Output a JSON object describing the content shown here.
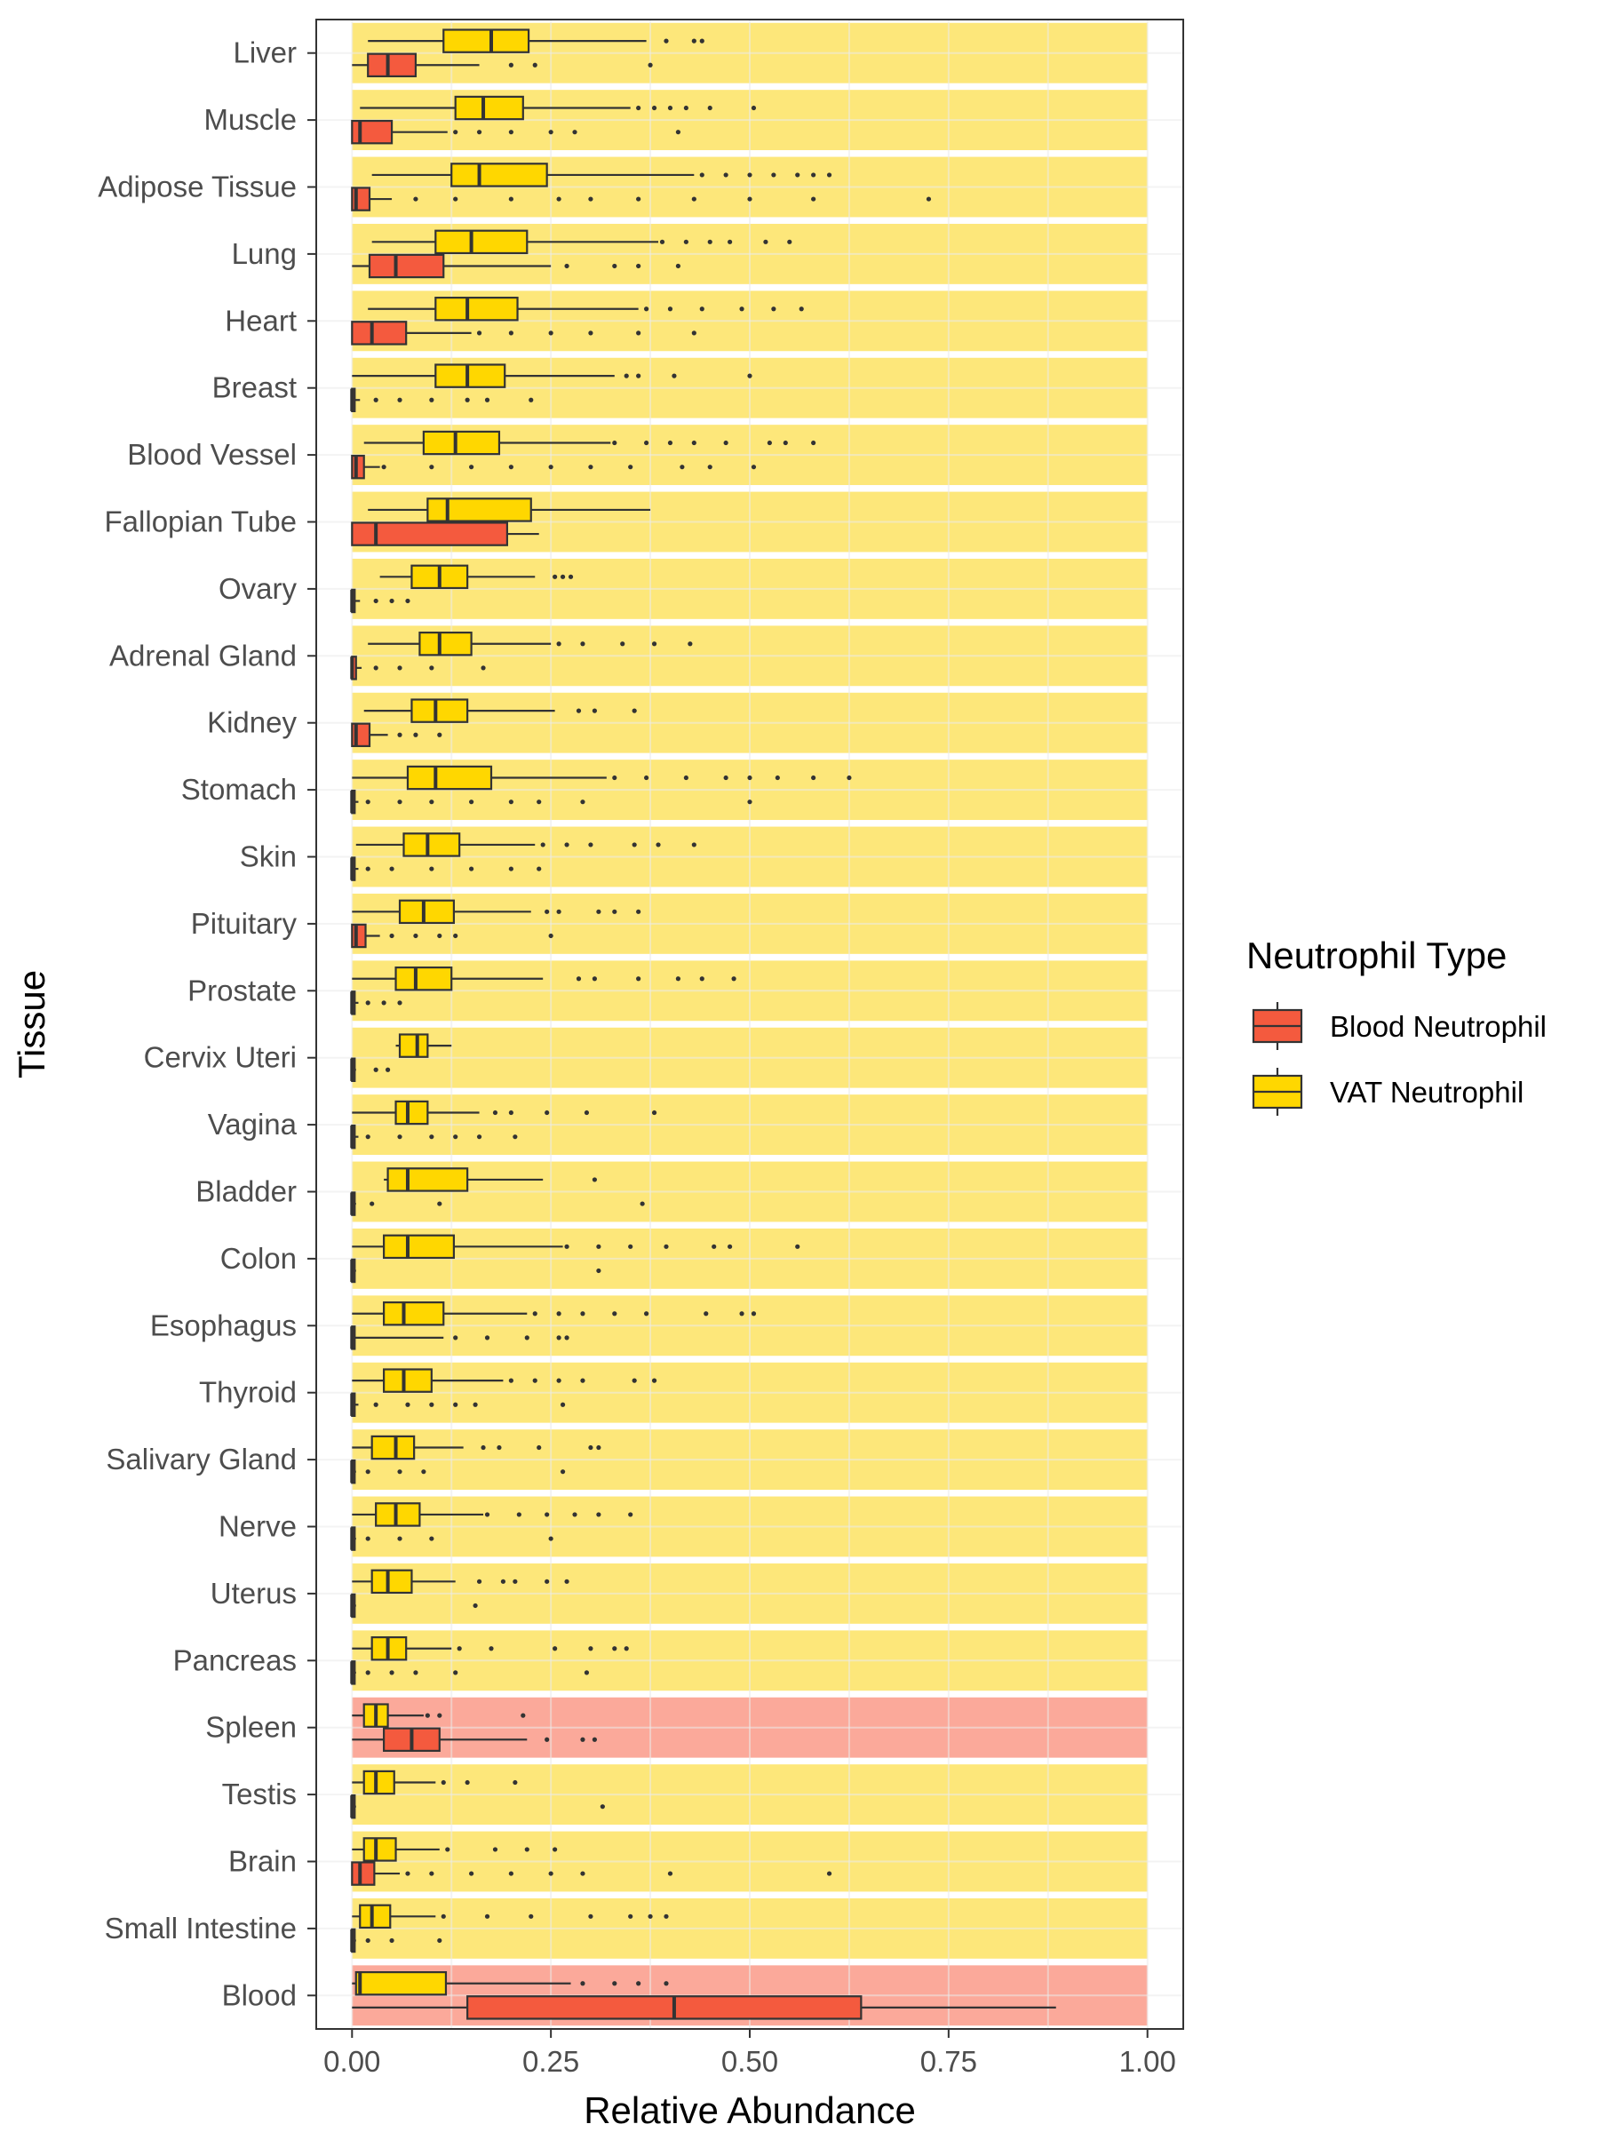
{
  "chart_data": {
    "type": "boxplot",
    "orientation": "horizontal",
    "xlabel": "Relative Abundance",
    "ylabel": "Tissue",
    "xlim": [
      -0.045,
      1.045
    ],
    "x_ticks": [
      0,
      0.25,
      0.5,
      0.75,
      1.0
    ],
    "x_tick_labels": [
      "0.00",
      "0.25",
      "0.50",
      "0.75",
      "1.00"
    ],
    "grid": true,
    "legend": {
      "title": "Neutrophil Type",
      "placement": "right",
      "entries": [
        {
          "name": "Blood Neutrophil",
          "color": "#F45A3E"
        },
        {
          "name": "VAT Neutrophil",
          "color": "#FFD700"
        }
      ]
    },
    "colors": {
      "blood_box": "#F45A3E",
      "vat_box": "#FFD700",
      "bg_vat_dominant": "#FDE77A",
      "bg_blood_dominant": "#FBA99A",
      "grid": "#EBEBEB",
      "box_outline": "#333333",
      "axis_text": "#4d4d4d"
    },
    "categories": [
      "Liver",
      "Muscle",
      "Adipose Tissue",
      "Lung",
      "Heart",
      "Breast",
      "Blood Vessel",
      "Fallopian Tube",
      "Ovary",
      "Adrenal Gland",
      "Kidney",
      "Stomach",
      "Skin",
      "Pituitary",
      "Prostate",
      "Cervix Uteri",
      "Vagina",
      "Bladder",
      "Colon",
      "Esophagus",
      "Thyroid",
      "Salivary Gland",
      "Nerve",
      "Uterus",
      "Pancreas",
      "Spleen",
      "Testis",
      "Brain",
      "Small Intestine",
      "Blood"
    ],
    "dominant_type": [
      "VAT Neutrophil",
      "VAT Neutrophil",
      "VAT Neutrophil",
      "VAT Neutrophil",
      "VAT Neutrophil",
      "VAT Neutrophil",
      "VAT Neutrophil",
      "VAT Neutrophil",
      "VAT Neutrophil",
      "VAT Neutrophil",
      "VAT Neutrophil",
      "VAT Neutrophil",
      "VAT Neutrophil",
      "VAT Neutrophil",
      "VAT Neutrophil",
      "VAT Neutrophil",
      "VAT Neutrophil",
      "VAT Neutrophil",
      "VAT Neutrophil",
      "VAT Neutrophil",
      "VAT Neutrophil",
      "VAT Neutrophil",
      "VAT Neutrophil",
      "VAT Neutrophil",
      "VAT Neutrophil",
      "Blood Neutrophil",
      "VAT Neutrophil",
      "VAT Neutrophil",
      "VAT Neutrophil",
      "Blood Neutrophil"
    ],
    "series": [
      {
        "name": "VAT Neutrophil",
        "boxes": [
          {
            "min": 0.02,
            "q1": 0.115,
            "median": 0.175,
            "q3": 0.222,
            "max": 0.37,
            "outliers": [
              0.395,
              0.43,
              0.44
            ]
          },
          {
            "min": 0.01,
            "q1": 0.13,
            "median": 0.165,
            "q3": 0.215,
            "max": 0.35,
            "outliers": [
              0.36,
              0.38,
              0.4,
              0.42,
              0.45,
              0.505
            ]
          },
          {
            "min": 0.025,
            "q1": 0.125,
            "median": 0.16,
            "q3": 0.245,
            "max": 0.43,
            "outliers": [
              0.44,
              0.47,
              0.5,
              0.53,
              0.56,
              0.58,
              0.6
            ]
          },
          {
            "min": 0.025,
            "q1": 0.105,
            "median": 0.15,
            "q3": 0.22,
            "max": 0.385,
            "outliers": [
              0.39,
              0.42,
              0.45,
              0.475,
              0.52,
              0.55
            ]
          },
          {
            "min": 0.02,
            "q1": 0.105,
            "median": 0.145,
            "q3": 0.208,
            "max": 0.36,
            "outliers": [
              0.37,
              0.4,
              0.44,
              0.49,
              0.53,
              0.565
            ]
          },
          {
            "min": 0.0,
            "q1": 0.105,
            "median": 0.145,
            "q3": 0.192,
            "max": 0.33,
            "outliers": [
              0.345,
              0.36,
              0.405,
              0.5
            ]
          },
          {
            "min": 0.015,
            "q1": 0.09,
            "median": 0.13,
            "q3": 0.185,
            "max": 0.325,
            "outliers": [
              0.33,
              0.37,
              0.4,
              0.43,
              0.47,
              0.525,
              0.545,
              0.58
            ]
          },
          {
            "min": 0.02,
            "q1": 0.095,
            "median": 0.12,
            "q3": 0.225,
            "max": 0.375,
            "outliers": []
          },
          {
            "min": 0.035,
            "q1": 0.075,
            "median": 0.11,
            "q3": 0.145,
            "max": 0.23,
            "outliers": [
              0.255,
              0.265,
              0.275
            ]
          },
          {
            "min": 0.02,
            "q1": 0.085,
            "median": 0.11,
            "q3": 0.15,
            "max": 0.25,
            "outliers": [
              0.26,
              0.29,
              0.34,
              0.38,
              0.425
            ]
          },
          {
            "min": 0.015,
            "q1": 0.075,
            "median": 0.105,
            "q3": 0.145,
            "max": 0.255,
            "outliers": [
              0.285,
              0.305,
              0.355
            ]
          },
          {
            "min": 0.0,
            "q1": 0.07,
            "median": 0.105,
            "q3": 0.175,
            "max": 0.32,
            "outliers": [
              0.33,
              0.37,
              0.42,
              0.47,
              0.5,
              0.535,
              0.58,
              0.625
            ]
          },
          {
            "min": 0.005,
            "q1": 0.065,
            "median": 0.095,
            "q3": 0.135,
            "max": 0.23,
            "outliers": [
              0.24,
              0.27,
              0.3,
              0.355,
              0.385,
              0.43
            ]
          },
          {
            "min": 0.0,
            "q1": 0.06,
            "median": 0.09,
            "q3": 0.128,
            "max": 0.225,
            "outliers": [
              0.245,
              0.26,
              0.31,
              0.33,
              0.36
            ]
          },
          {
            "min": 0.0,
            "q1": 0.055,
            "median": 0.08,
            "q3": 0.125,
            "max": 0.24,
            "outliers": [
              0.285,
              0.305,
              0.36,
              0.41,
              0.44,
              0.48
            ]
          },
          {
            "min": 0.055,
            "q1": 0.06,
            "median": 0.082,
            "q3": 0.095,
            "max": 0.125,
            "outliers": []
          },
          {
            "min": 0.0,
            "q1": 0.055,
            "median": 0.07,
            "q3": 0.095,
            "max": 0.16,
            "outliers": [
              0.18,
              0.2,
              0.245,
              0.295,
              0.38
            ]
          },
          {
            "min": 0.04,
            "q1": 0.045,
            "median": 0.07,
            "q3": 0.145,
            "max": 0.24,
            "outliers": [
              0.305
            ]
          },
          {
            "min": 0.0,
            "q1": 0.04,
            "median": 0.07,
            "q3": 0.128,
            "max": 0.265,
            "outliers": [
              0.27,
              0.31,
              0.35,
              0.395,
              0.455,
              0.475,
              0.56
            ]
          },
          {
            "min": 0.0,
            "q1": 0.04,
            "median": 0.065,
            "q3": 0.115,
            "max": 0.22,
            "outliers": [
              0.23,
              0.26,
              0.29,
              0.33,
              0.37,
              0.445,
              0.49,
              0.505
            ]
          },
          {
            "min": 0.0,
            "q1": 0.04,
            "median": 0.065,
            "q3": 0.1,
            "max": 0.19,
            "outliers": [
              0.2,
              0.23,
              0.26,
              0.29,
              0.355,
              0.38
            ]
          },
          {
            "min": 0.0,
            "q1": 0.025,
            "median": 0.055,
            "q3": 0.078,
            "max": 0.14,
            "outliers": [
              0.165,
              0.185,
              0.235,
              0.3,
              0.31
            ]
          },
          {
            "min": 0.0,
            "q1": 0.03,
            "median": 0.055,
            "q3": 0.085,
            "max": 0.165,
            "outliers": [
              0.17,
              0.21,
              0.245,
              0.28,
              0.31,
              0.35
            ]
          },
          {
            "min": 0.0,
            "q1": 0.025,
            "median": 0.045,
            "q3": 0.075,
            "max": 0.13,
            "outliers": [
              0.16,
              0.19,
              0.205,
              0.245,
              0.27
            ]
          },
          {
            "min": 0.0,
            "q1": 0.025,
            "median": 0.045,
            "q3": 0.068,
            "max": 0.125,
            "outliers": [
              0.135,
              0.175,
              0.255,
              0.3,
              0.33,
              0.345
            ]
          },
          {
            "min": 0.0,
            "q1": 0.015,
            "median": 0.03,
            "q3": 0.045,
            "max": 0.09,
            "outliers": [
              0.095,
              0.11,
              0.215
            ]
          },
          {
            "min": 0.0,
            "q1": 0.015,
            "median": 0.03,
            "q3": 0.053,
            "max": 0.105,
            "outliers": [
              0.115,
              0.145,
              0.205
            ]
          },
          {
            "min": 0.0,
            "q1": 0.015,
            "median": 0.03,
            "q3": 0.055,
            "max": 0.11,
            "outliers": [
              0.12,
              0.18,
              0.22,
              0.255
            ]
          },
          {
            "min": 0.0,
            "q1": 0.01,
            "median": 0.025,
            "q3": 0.048,
            "max": 0.105,
            "outliers": [
              0.115,
              0.17,
              0.225,
              0.3,
              0.35,
              0.375,
              0.395
            ]
          },
          {
            "min": 0.0,
            "q1": 0.005,
            "median": 0.01,
            "q3": 0.118,
            "max": 0.275,
            "outliers": [
              0.29,
              0.33,
              0.36,
              0.395
            ]
          }
        ]
      },
      {
        "name": "Blood Neutrophil",
        "boxes": [
          {
            "min": 0.0,
            "q1": 0.02,
            "median": 0.045,
            "q3": 0.08,
            "max": 0.16,
            "outliers": [
              0.2,
              0.23,
              0.375
            ]
          },
          {
            "min": 0.0,
            "q1": 0.0,
            "median": 0.01,
            "q3": 0.05,
            "max": 0.12,
            "outliers": [
              0.13,
              0.16,
              0.2,
              0.25,
              0.28,
              0.41
            ]
          },
          {
            "min": 0.0,
            "q1": 0.0,
            "median": 0.005,
            "q3": 0.022,
            "max": 0.05,
            "outliers": [
              0.08,
              0.13,
              0.2,
              0.26,
              0.3,
              0.36,
              0.43,
              0.5,
              0.58,
              0.725
            ]
          },
          {
            "min": 0.0,
            "q1": 0.022,
            "median": 0.055,
            "q3": 0.115,
            "max": 0.25,
            "outliers": [
              0.27,
              0.33,
              0.36,
              0.41
            ]
          },
          {
            "min": 0.0,
            "q1": 0.0,
            "median": 0.025,
            "q3": 0.068,
            "max": 0.15,
            "outliers": [
              0.16,
              0.2,
              0.25,
              0.3,
              0.36,
              0.43
            ]
          },
          {
            "min": 0.0,
            "q1": 0.0,
            "median": 0.0,
            "q3": 0.003,
            "max": 0.01,
            "outliers": [
              0.03,
              0.06,
              0.1,
              0.145,
              0.17,
              0.225
            ]
          },
          {
            "min": 0.0,
            "q1": 0.0,
            "median": 0.005,
            "q3": 0.015,
            "max": 0.035,
            "outliers": [
              0.04,
              0.1,
              0.15,
              0.2,
              0.25,
              0.3,
              0.35,
              0.415,
              0.45,
              0.505
            ]
          },
          {
            "min": 0.0,
            "q1": 0.0,
            "median": 0.03,
            "q3": 0.195,
            "max": 0.235,
            "outliers": []
          },
          {
            "min": 0.0,
            "q1": 0.0,
            "median": 0.0,
            "q3": 0.003,
            "max": 0.01,
            "outliers": [
              0.03,
              0.05,
              0.07
            ]
          },
          {
            "min": 0.0,
            "q1": 0.0,
            "median": 0.0,
            "q3": 0.005,
            "max": 0.012,
            "outliers": [
              0.03,
              0.06,
              0.1,
              0.165
            ]
          },
          {
            "min": 0.0,
            "q1": 0.0,
            "median": 0.005,
            "q3": 0.022,
            "max": 0.045,
            "outliers": [
              0.06,
              0.08,
              0.11
            ]
          },
          {
            "min": 0.0,
            "q1": 0.0,
            "median": 0.0,
            "q3": 0.003,
            "max": 0.008,
            "outliers": [
              0.02,
              0.06,
              0.1,
              0.15,
              0.2,
              0.235,
              0.29,
              0.5
            ]
          },
          {
            "min": 0.0,
            "q1": 0.0,
            "median": 0.0,
            "q3": 0.003,
            "max": 0.008,
            "outliers": [
              0.02,
              0.05,
              0.1,
              0.15,
              0.2,
              0.235
            ]
          },
          {
            "min": 0.0,
            "q1": 0.0,
            "median": 0.005,
            "q3": 0.017,
            "max": 0.035,
            "outliers": [
              0.05,
              0.08,
              0.11,
              0.13,
              0.25
            ]
          },
          {
            "min": 0.0,
            "q1": 0.0,
            "median": 0.0,
            "q3": 0.003,
            "max": 0.008,
            "outliers": [
              0.02,
              0.04,
              0.06
            ]
          },
          {
            "min": 0.0,
            "q1": 0.0,
            "median": 0.0,
            "q3": 0.003,
            "max": 0.005,
            "outliers": [
              0.03,
              0.045
            ]
          },
          {
            "min": 0.0,
            "q1": 0.0,
            "median": 0.0,
            "q3": 0.003,
            "max": 0.008,
            "outliers": [
              0.02,
              0.06,
              0.1,
              0.13,
              0.16,
              0.205
            ]
          },
          {
            "min": 0.0,
            "q1": 0.0,
            "median": 0.0,
            "q3": 0.003,
            "max": 0.005,
            "outliers": [
              0.025,
              0.11,
              0.365
            ]
          },
          {
            "min": 0.0,
            "q1": 0.0,
            "median": 0.0,
            "q3": 0.003,
            "max": 0.005,
            "outliers": [
              0.31
            ]
          },
          {
            "min": 0.0,
            "q1": 0.0,
            "median": 0.0,
            "q3": 0.003,
            "max": 0.115,
            "outliers": [
              0.13,
              0.17,
              0.22,
              0.26,
              0.27
            ]
          },
          {
            "min": 0.0,
            "q1": 0.0,
            "median": 0.0,
            "q3": 0.003,
            "max": 0.008,
            "outliers": [
              0.03,
              0.07,
              0.1,
              0.13,
              0.155,
              0.265
            ]
          },
          {
            "min": 0.0,
            "q1": 0.0,
            "median": 0.0,
            "q3": 0.003,
            "max": 0.005,
            "outliers": [
              0.02,
              0.06,
              0.09,
              0.265
            ]
          },
          {
            "min": 0.0,
            "q1": 0.0,
            "median": 0.0,
            "q3": 0.003,
            "max": 0.005,
            "outliers": [
              0.02,
              0.06,
              0.1,
              0.25
            ]
          },
          {
            "min": 0.0,
            "q1": 0.0,
            "median": 0.0,
            "q3": 0.003,
            "max": 0.005,
            "outliers": [
              0.155
            ]
          },
          {
            "min": 0.0,
            "q1": 0.0,
            "median": 0.0,
            "q3": 0.003,
            "max": 0.005,
            "outliers": [
              0.02,
              0.05,
              0.08,
              0.13,
              0.295
            ]
          },
          {
            "min": 0.0,
            "q1": 0.04,
            "median": 0.075,
            "q3": 0.11,
            "max": 0.22,
            "outliers": [
              0.245,
              0.29,
              0.305
            ]
          },
          {
            "min": 0.0,
            "q1": 0.0,
            "median": 0.0,
            "q3": 0.003,
            "max": 0.005,
            "outliers": [
              0.315
            ]
          },
          {
            "min": 0.0,
            "q1": 0.0,
            "median": 0.01,
            "q3": 0.028,
            "max": 0.06,
            "outliers": [
              0.07,
              0.1,
              0.15,
              0.2,
              0.25,
              0.29,
              0.4,
              0.6
            ]
          },
          {
            "min": 0.0,
            "q1": 0.0,
            "median": 0.0,
            "q3": 0.003,
            "max": 0.005,
            "outliers": [
              0.02,
              0.05,
              0.11
            ]
          },
          {
            "min": 0.0,
            "q1": 0.145,
            "median": 0.405,
            "q3": 0.64,
            "max": 0.885,
            "outliers": []
          }
        ]
      }
    ]
  }
}
